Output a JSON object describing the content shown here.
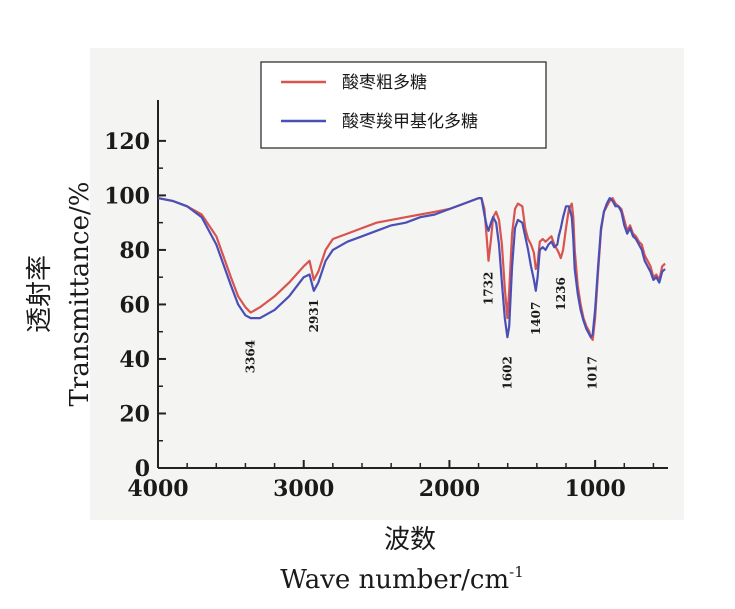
{
  "chart_data": {
    "type": "line",
    "xlabel_cn": "波数",
    "xlabel_en": "Wave  number/cm",
    "xlabel_sup": "-1",
    "ylabel_cn": "透射率",
    "ylabel_en": "Transmittance/%",
    "xlim": [
      4000,
      500
    ],
    "ylim": [
      0,
      135
    ],
    "x_ticks": [
      4000,
      3000,
      2000,
      1000
    ],
    "y_ticks": [
      0,
      20,
      40,
      60,
      80,
      100,
      120
    ],
    "x_tick_labels": [
      "4000",
      "3000",
      "2000",
      "1000"
    ],
    "y_tick_labels": [
      "0",
      "20",
      "40",
      "60",
      "80",
      "100",
      "120"
    ],
    "legend": {
      "placement": "top-center"
    },
    "series": [
      {
        "name": "酸枣粗多糖",
        "color": "#d9534f",
        "x": [
          4000,
          3900,
          3800,
          3700,
          3600,
          3500,
          3450,
          3400,
          3364,
          3300,
          3200,
          3100,
          3000,
          2960,
          2931,
          2900,
          2850,
          2800,
          2700,
          2600,
          2500,
          2400,
          2300,
          2200,
          2100,
          2000,
          1900,
          1850,
          1800,
          1780,
          1760,
          1745,
          1732,
          1715,
          1700,
          1680,
          1660,
          1640,
          1620,
          1602,
          1590,
          1570,
          1550,
          1530,
          1500,
          1480,
          1460,
          1440,
          1420,
          1407,
          1395,
          1380,
          1360,
          1340,
          1320,
          1300,
          1280,
          1260,
          1250,
          1236,
          1220,
          1200,
          1180,
          1160,
          1150,
          1140,
          1120,
          1100,
          1080,
          1060,
          1040,
          1030,
          1017,
          1000,
          980,
          960,
          940,
          920,
          900,
          880,
          860,
          840,
          820,
          800,
          780,
          760,
          740,
          720,
          700,
          680,
          660,
          640,
          620,
          600,
          580,
          560,
          540,
          520
        ],
        "values": [
          99,
          98,
          96,
          93,
          85,
          70,
          63,
          59,
          57,
          59,
          63,
          68,
          74,
          76,
          69,
          72,
          80,
          84,
          86,
          88,
          90,
          91,
          92,
          93,
          94,
          95,
          97,
          98,
          99,
          99,
          95,
          85,
          76,
          84,
          92,
          94,
          91,
          82,
          66,
          55,
          65,
          86,
          95,
          97,
          96,
          88,
          84,
          82,
          79,
          73,
          75,
          83,
          84,
          83,
          84,
          85,
          82,
          80,
          79,
          77,
          80,
          88,
          95,
          97,
          92,
          80,
          67,
          60,
          55,
          52,
          50,
          48,
          47,
          55,
          72,
          87,
          94,
          96,
          98,
          99,
          97,
          96,
          95,
          91,
          87,
          89,
          86,
          85,
          83,
          82,
          78,
          76,
          74,
          70,
          71,
          69,
          74,
          75
        ]
      },
      {
        "name": "酸枣羧甲基化多糖",
        "color": "#4a4fb5",
        "x": [
          4000,
          3900,
          3800,
          3700,
          3600,
          3500,
          3450,
          3400,
          3364,
          3300,
          3200,
          3100,
          3000,
          2960,
          2931,
          2900,
          2850,
          2800,
          2700,
          2600,
          2500,
          2400,
          2300,
          2200,
          2100,
          2000,
          1900,
          1850,
          1800,
          1780,
          1760,
          1745,
          1732,
          1715,
          1700,
          1680,
          1660,
          1640,
          1620,
          1602,
          1590,
          1570,
          1550,
          1530,
          1500,
          1480,
          1460,
          1440,
          1420,
          1407,
          1395,
          1380,
          1360,
          1340,
          1320,
          1300,
          1280,
          1260,
          1250,
          1236,
          1220,
          1200,
          1180,
          1160,
          1150,
          1140,
          1120,
          1100,
          1080,
          1060,
          1040,
          1030,
          1017,
          1000,
          980,
          960,
          940,
          920,
          900,
          880,
          860,
          840,
          820,
          800,
          780,
          760,
          740,
          720,
          700,
          680,
          660,
          640,
          620,
          600,
          580,
          560,
          540,
          520
        ],
        "values": [
          99,
          98,
          96,
          92,
          82,
          67,
          60,
          56,
          55,
          55,
          58,
          63,
          70,
          71,
          65,
          68,
          76,
          80,
          83,
          85,
          87,
          89,
          90,
          92,
          93,
          95,
          97,
          98,
          99,
          99,
          93,
          89,
          87,
          90,
          92,
          90,
          82,
          68,
          55,
          48,
          52,
          74,
          88,
          91,
          90,
          85,
          80,
          74,
          69,
          65,
          70,
          80,
          81,
          80,
          82,
          83,
          81,
          82,
          85,
          88,
          92,
          96,
          96,
          92,
          84,
          73,
          64,
          58,
          54,
          51,
          49,
          48,
          49,
          58,
          74,
          88,
          94,
          97,
          99,
          98,
          96,
          96,
          94,
          89,
          86,
          88,
          85,
          84,
          82,
          80,
          76,
          74,
          72,
          69,
          70,
          68,
          72,
          73
        ]
      }
    ],
    "annotations": [
      {
        "label": "3364",
        "x": 3364,
        "y": 47
      },
      {
        "label": "2931",
        "x": 2931,
        "y": 62
      },
      {
        "label": "1732",
        "x": 1732,
        "y": 72
      },
      {
        "label": "1602",
        "x": 1602,
        "y": 41
      },
      {
        "label": "1407",
        "x": 1407,
        "y": 61
      },
      {
        "label": "1236",
        "x": 1236,
        "y": 70
      },
      {
        "label": "1017",
        "x": 1017,
        "y": 41
      }
    ]
  }
}
